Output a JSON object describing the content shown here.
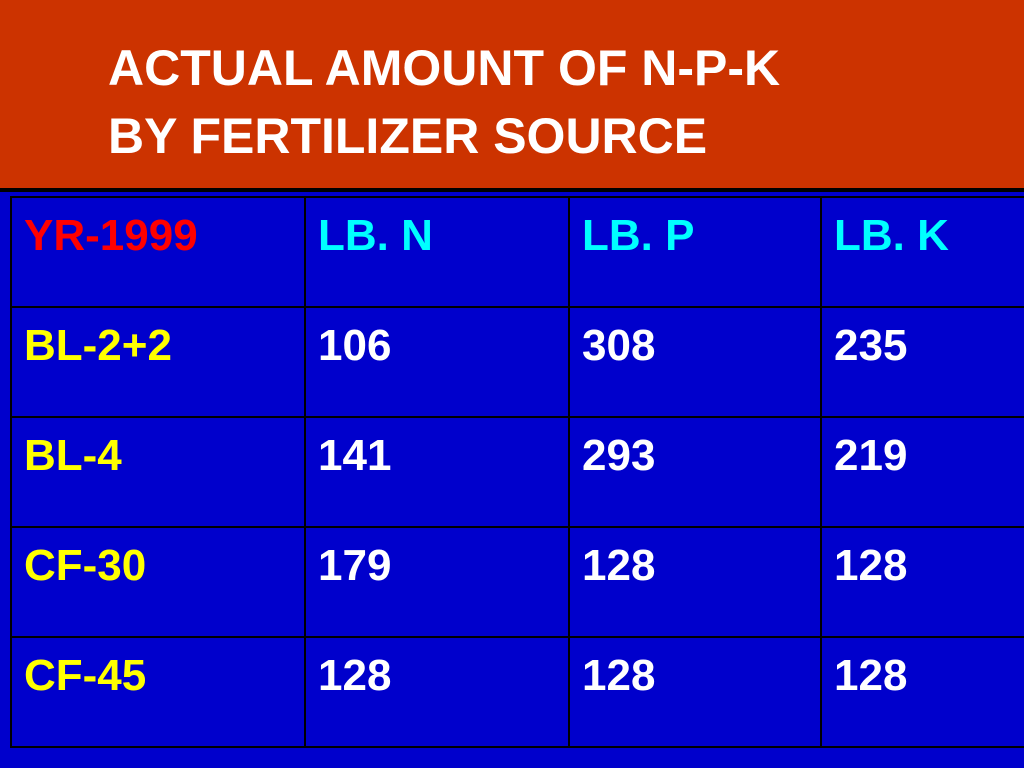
{
  "title": {
    "line1": "ACTUAL AMOUNT OF N-P-K",
    "line2": "BY FERTILIZER SOURCE"
  },
  "table": {
    "headers": [
      "YR-1999",
      "LB. N",
      "LB. P",
      "LB. K"
    ],
    "rows": [
      [
        "BL-2+2",
        "106",
        "308",
        "235"
      ],
      [
        "BL-4",
        "141",
        "293",
        "219"
      ],
      [
        "CF-30",
        "179",
        "128",
        "128"
      ],
      [
        "CF-45",
        "128",
        "128",
        "128"
      ]
    ]
  },
  "colors": {
    "background": "#0000cc",
    "title_bar": "#cc3300",
    "title_text": "#ffffff",
    "year_header": "#ff0000",
    "column_header": "#00ffff",
    "row_label": "#ffff00",
    "value": "#ffffff"
  }
}
